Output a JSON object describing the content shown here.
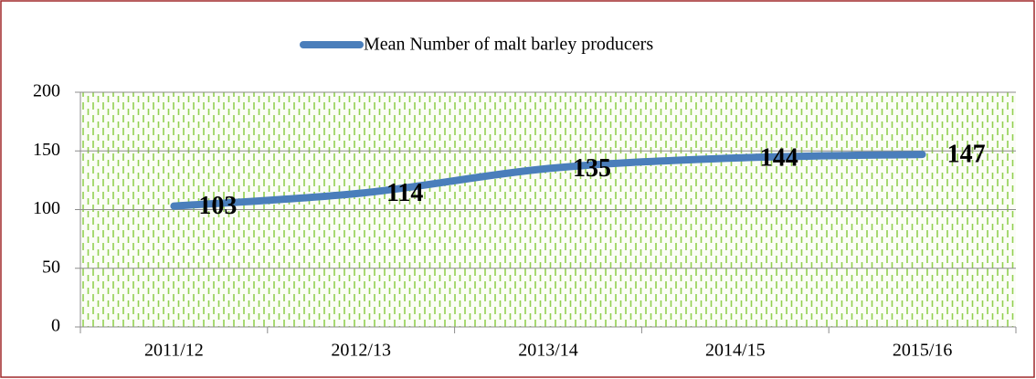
{
  "chart_data": {
    "type": "line",
    "categories": [
      "2011/12",
      "2012/13",
      "2013/14",
      "2014/15",
      "2015/16"
    ],
    "series": [
      {
        "name": "Mean Number of malt barley producers",
        "color": "#4a7ebb",
        "values": [
          103,
          114,
          135,
          144,
          147
        ]
      }
    ],
    "ylim": [
      0,
      200
    ],
    "yticks": [
      0,
      50,
      100,
      150,
      200
    ],
    "grid": true,
    "legend": "top"
  }
}
